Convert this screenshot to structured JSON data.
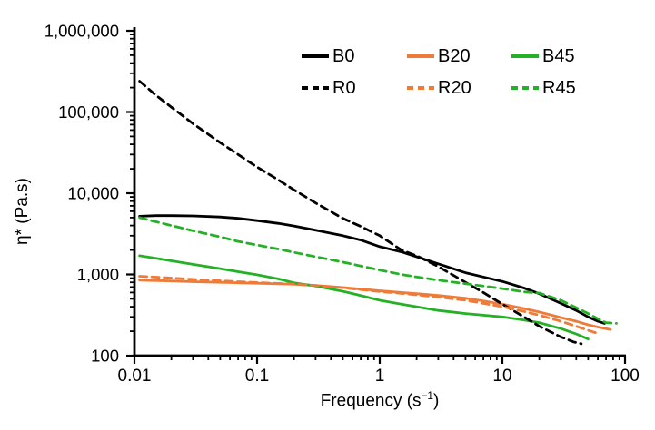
{
  "figure": {
    "background": "#ffffff"
  },
  "chart_data": {
    "type": "line",
    "title": "",
    "xlabel_parts": {
      "prefix": "Frequency (s",
      "sup": "−1",
      "suffix": ")"
    },
    "ylabel": "η* (Pa.s)",
    "xscale": "log",
    "yscale": "log",
    "xlim": [
      0.01,
      100
    ],
    "ylim": [
      100,
      1000000
    ],
    "grid": false,
    "legend_position": "top-center-right, 2 rows x 3 columns",
    "xticklabels": [
      "0.01",
      "0.1",
      "1",
      "10",
      "100"
    ],
    "yticklabels": [
      "100",
      "1,000",
      "10,000",
      "100,000",
      "1,000,000"
    ],
    "axis_color": "#000000",
    "series": [
      {
        "name": "B0",
        "color": "#000000",
        "style": "solid",
        "points": [
          [
            0.011,
            5200
          ],
          [
            0.015,
            5300
          ],
          [
            0.02,
            5300
          ],
          [
            0.03,
            5250
          ],
          [
            0.05,
            5100
          ],
          [
            0.07,
            4900
          ],
          [
            0.1,
            4600
          ],
          [
            0.15,
            4250
          ],
          [
            0.2,
            3950
          ],
          [
            0.3,
            3500
          ],
          [
            0.5,
            3000
          ],
          [
            0.7,
            2650
          ],
          [
            1,
            2200
          ],
          [
            1.5,
            1900
          ],
          [
            2,
            1650
          ],
          [
            3,
            1350
          ],
          [
            5,
            1050
          ],
          [
            7,
            930
          ],
          [
            10,
            820
          ],
          [
            15,
            680
          ],
          [
            20,
            580
          ],
          [
            30,
            440
          ],
          [
            40,
            360
          ],
          [
            50,
            300
          ],
          [
            60,
            265
          ],
          [
            68,
            250
          ]
        ]
      },
      {
        "name": "B20",
        "color": "#ef7b39",
        "style": "solid",
        "points": [
          [
            0.011,
            850
          ],
          [
            0.02,
            830
          ],
          [
            0.03,
            815
          ],
          [
            0.05,
            800
          ],
          [
            0.07,
            790
          ],
          [
            0.1,
            780
          ],
          [
            0.15,
            765
          ],
          [
            0.2,
            760
          ],
          [
            0.3,
            730
          ],
          [
            0.5,
            690
          ],
          [
            0.7,
            660
          ],
          [
            1,
            630
          ],
          [
            1.5,
            600
          ],
          [
            2,
            580
          ],
          [
            3,
            550
          ],
          [
            5,
            510
          ],
          [
            7,
            470
          ],
          [
            10,
            430
          ],
          [
            15,
            380
          ],
          [
            20,
            345
          ],
          [
            30,
            295
          ],
          [
            40,
            265
          ],
          [
            50,
            240
          ],
          [
            60,
            225
          ],
          [
            76,
            210
          ]
        ]
      },
      {
        "name": "B45",
        "color": "#25b125",
        "style": "solid",
        "points": [
          [
            0.011,
            1700
          ],
          [
            0.015,
            1580
          ],
          [
            0.02,
            1470
          ],
          [
            0.03,
            1330
          ],
          [
            0.05,
            1180
          ],
          [
            0.07,
            1080
          ],
          [
            0.1,
            990
          ],
          [
            0.15,
            880
          ],
          [
            0.2,
            790
          ],
          [
            0.3,
            720
          ],
          [
            0.5,
            620
          ],
          [
            0.7,
            550
          ],
          [
            1,
            480
          ],
          [
            1.5,
            430
          ],
          [
            2,
            400
          ],
          [
            3,
            360
          ],
          [
            5,
            330
          ],
          [
            7,
            315
          ],
          [
            10,
            300
          ],
          [
            15,
            275
          ],
          [
            20,
            255
          ],
          [
            30,
            215
          ],
          [
            40,
            185
          ],
          [
            50,
            160
          ]
        ]
      },
      {
        "name": "R0",
        "color": "#000000",
        "style": "dashed",
        "points": [
          [
            0.011,
            240000
          ],
          [
            0.015,
            160000
          ],
          [
            0.02,
            115000
          ],
          [
            0.03,
            72000
          ],
          [
            0.05,
            42000
          ],
          [
            0.07,
            30000
          ],
          [
            0.1,
            21000
          ],
          [
            0.15,
            14500
          ],
          [
            0.2,
            11000
          ],
          [
            0.3,
            7600
          ],
          [
            0.5,
            4900
          ],
          [
            0.7,
            3900
          ],
          [
            1,
            3000
          ],
          [
            1.5,
            2000
          ],
          [
            2,
            1700
          ],
          [
            3,
            1250
          ],
          [
            5,
            800
          ],
          [
            7,
            600
          ],
          [
            10,
            430
          ],
          [
            15,
            300
          ],
          [
            20,
            230
          ],
          [
            30,
            170
          ],
          [
            38,
            148
          ],
          [
            44,
            140
          ]
        ]
      },
      {
        "name": "R20",
        "color": "#ef7b39",
        "style": "dashed",
        "points": [
          [
            0.011,
            950
          ],
          [
            0.02,
            905
          ],
          [
            0.03,
            870
          ],
          [
            0.05,
            835
          ],
          [
            0.07,
            815
          ],
          [
            0.1,
            795
          ],
          [
            0.15,
            775
          ],
          [
            0.2,
            760
          ],
          [
            0.3,
            730
          ],
          [
            0.5,
            685
          ],
          [
            0.7,
            650
          ],
          [
            1,
            615
          ],
          [
            1.5,
            585
          ],
          [
            2,
            560
          ],
          [
            3,
            525
          ],
          [
            5,
            480
          ],
          [
            7,
            440
          ],
          [
            10,
            400
          ],
          [
            15,
            350
          ],
          [
            20,
            315
          ],
          [
            30,
            265
          ],
          [
            40,
            230
          ],
          [
            50,
            205
          ],
          [
            62,
            185
          ]
        ]
      },
      {
        "name": "R45",
        "color": "#25b125",
        "style": "dashed",
        "points": [
          [
            0.011,
            5000
          ],
          [
            0.015,
            4450
          ],
          [
            0.02,
            4000
          ],
          [
            0.03,
            3450
          ],
          [
            0.05,
            2900
          ],
          [
            0.07,
            2550
          ],
          [
            0.1,
            2300
          ],
          [
            0.15,
            2050
          ],
          [
            0.2,
            1870
          ],
          [
            0.3,
            1650
          ],
          [
            0.5,
            1420
          ],
          [
            0.7,
            1270
          ],
          [
            1,
            1130
          ],
          [
            1.5,
            1000
          ],
          [
            2,
            930
          ],
          [
            3,
            850
          ],
          [
            5,
            770
          ],
          [
            7,
            720
          ],
          [
            10,
            670
          ],
          [
            15,
            610
          ],
          [
            20,
            590
          ],
          [
            30,
            480
          ],
          [
            40,
            390
          ],
          [
            50,
            330
          ],
          [
            60,
            285
          ],
          [
            70,
            255
          ],
          [
            85,
            250
          ]
        ]
      }
    ]
  }
}
